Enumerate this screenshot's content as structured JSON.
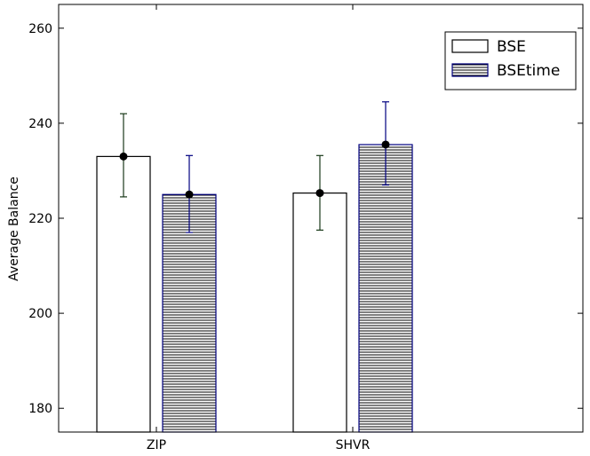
{
  "chart_data": {
    "type": "bar",
    "title": "",
    "xlabel": "",
    "ylabel": "Average Balance",
    "categories": [
      "ZIP",
      "SHVR"
    ],
    "ylim": [
      175,
      265
    ],
    "yticks": [
      180,
      200,
      220,
      240,
      260
    ],
    "grid": false,
    "legend_position": "top-right",
    "series": [
      {
        "name": "BSE",
        "values": [
          233,
          225.3
        ],
        "error_low": [
          224.5,
          217.5
        ],
        "error_high": [
          242,
          233.2
        ],
        "fill": "#ffffff",
        "edge": "#000000",
        "errorbar_color": "#1a3a1a",
        "hatch": "none"
      },
      {
        "name": "BSEtime",
        "values": [
          225,
          235.5
        ],
        "error_low": [
          217,
          227
        ],
        "error_high": [
          233.2,
          244.5
        ],
        "fill": "#ffffff",
        "edge": "#000080",
        "errorbar_color": "#000080",
        "hatch": "horizontal"
      }
    ]
  }
}
